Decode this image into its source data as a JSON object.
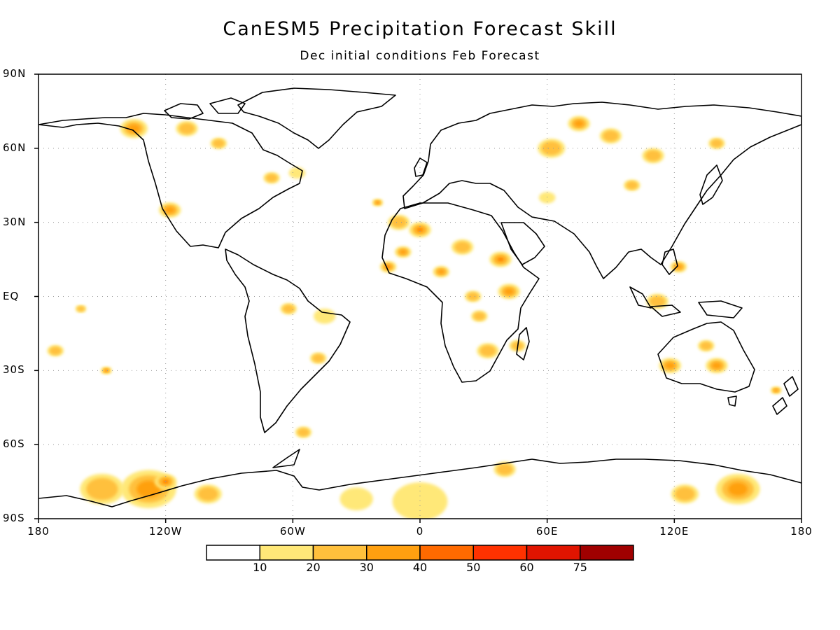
{
  "title": "CanESM5 Precipitation Forecast Skill",
  "subtitle": "Dec initial conditions  Feb Forecast",
  "lat_labels": [
    "90N",
    "60N",
    "30N",
    "EQ",
    "30S",
    "60S",
    "90S"
  ],
  "lon_labels": [
    "180",
    "120W",
    "60W",
    "0",
    "60E",
    "120E",
    "180"
  ],
  "colorbar": {
    "labels": [
      "10",
      "20",
      "30",
      "40",
      "50",
      "60",
      "75"
    ],
    "colors": [
      "#ffffff",
      "#ffe878",
      "#ffc03c",
      "#ffa010",
      "#ff6a00",
      "#ff3200",
      "#e01400",
      "#a00000"
    ]
  },
  "chart_data": {
    "type": "heatmap",
    "map_extent": {
      "lon": [
        -180,
        180
      ],
      "lat": [
        -90,
        90
      ]
    },
    "blobs": [
      {
        "lon": -135,
        "lat": 68,
        "r": 5,
        "level": 3
      },
      {
        "lon": -110,
        "lat": 68,
        "r": 4,
        "level": 2
      },
      {
        "lon": -95,
        "lat": 62,
        "r": 3,
        "level": 2
      },
      {
        "lon": -70,
        "lat": 48,
        "r": 3,
        "level": 2
      },
      {
        "lon": -118,
        "lat": 35,
        "r": 4,
        "level": 3
      },
      {
        "lon": -58,
        "lat": 50,
        "r": 3,
        "level": 1
      },
      {
        "lon": -45,
        "lat": -8,
        "r": 4,
        "level": 1
      },
      {
        "lon": -62,
        "lat": -5,
        "r": 3,
        "level": 2
      },
      {
        "lon": -48,
        "lat": -25,
        "r": 3,
        "level": 2
      },
      {
        "lon": -55,
        "lat": -55,
        "r": 3,
        "level": 2
      },
      {
        "lon": -20,
        "lat": 38,
        "r": 2,
        "level": 4
      },
      {
        "lon": -10,
        "lat": 30,
        "r": 4,
        "level": 2
      },
      {
        "lon": 0,
        "lat": 27,
        "r": 4,
        "level": 4
      },
      {
        "lon": -8,
        "lat": 18,
        "r": 3,
        "level": 3
      },
      {
        "lon": -15,
        "lat": 12,
        "r": 3,
        "level": 4
      },
      {
        "lon": 20,
        "lat": 20,
        "r": 4,
        "level": 2
      },
      {
        "lon": 38,
        "lat": 15,
        "r": 4,
        "level": 4
      },
      {
        "lon": 42,
        "lat": 2,
        "r": 4,
        "level": 3
      },
      {
        "lon": 28,
        "lat": -8,
        "r": 3,
        "level": 2
      },
      {
        "lon": 32,
        "lat": -22,
        "r": 4,
        "level": 2
      },
      {
        "lon": 46,
        "lat": -20,
        "r": 3,
        "level": 2
      },
      {
        "lon": 10,
        "lat": 10,
        "r": 3,
        "level": 3
      },
      {
        "lon": 25,
        "lat": 0,
        "r": 3,
        "level": 2
      },
      {
        "lon": 62,
        "lat": 60,
        "r": 5,
        "level": 2
      },
      {
        "lon": 75,
        "lat": 70,
        "r": 4,
        "level": 3
      },
      {
        "lon": 90,
        "lat": 65,
        "r": 4,
        "level": 2
      },
      {
        "lon": 110,
        "lat": 57,
        "r": 4,
        "level": 2
      },
      {
        "lon": 140,
        "lat": 62,
        "r": 3,
        "level": 2
      },
      {
        "lon": 100,
        "lat": 45,
        "r": 3,
        "level": 2
      },
      {
        "lon": 60,
        "lat": 40,
        "r": 3,
        "level": 1
      },
      {
        "lon": 112,
        "lat": -2,
        "r": 4,
        "level": 2
      },
      {
        "lon": 122,
        "lat": 12,
        "r": 3,
        "level": 3
      },
      {
        "lon": 118,
        "lat": -28,
        "r": 4,
        "level": 3
      },
      {
        "lon": 140,
        "lat": -28,
        "r": 4,
        "level": 3
      },
      {
        "lon": 135,
        "lat": -20,
        "r": 3,
        "level": 2
      },
      {
        "lon": 168,
        "lat": -38,
        "r": 2,
        "level": 3
      },
      {
        "lon": -172,
        "lat": -22,
        "r": 3,
        "level": 2
      },
      {
        "lon": -148,
        "lat": -30,
        "r": 2,
        "level": 4
      },
      {
        "lon": -160,
        "lat": -5,
        "r": 2,
        "level": 2
      },
      {
        "lon": -128,
        "lat": -78,
        "r": 10,
        "level": 3
      },
      {
        "lon": -150,
        "lat": -78,
        "r": 8,
        "level": 2
      },
      {
        "lon": -120,
        "lat": -75,
        "r": 4,
        "level": 4
      },
      {
        "lon": 0,
        "lat": -83,
        "r": 10,
        "level": 1
      },
      {
        "lon": 40,
        "lat": -70,
        "r": 4,
        "level": 2
      },
      {
        "lon": 150,
        "lat": -78,
        "r": 8,
        "level": 3
      },
      {
        "lon": 125,
        "lat": -80,
        "r": 5,
        "level": 2
      },
      {
        "lon": -30,
        "lat": -82,
        "r": 6,
        "level": 1
      },
      {
        "lon": -100,
        "lat": -80,
        "r": 5,
        "level": 2
      }
    ]
  }
}
